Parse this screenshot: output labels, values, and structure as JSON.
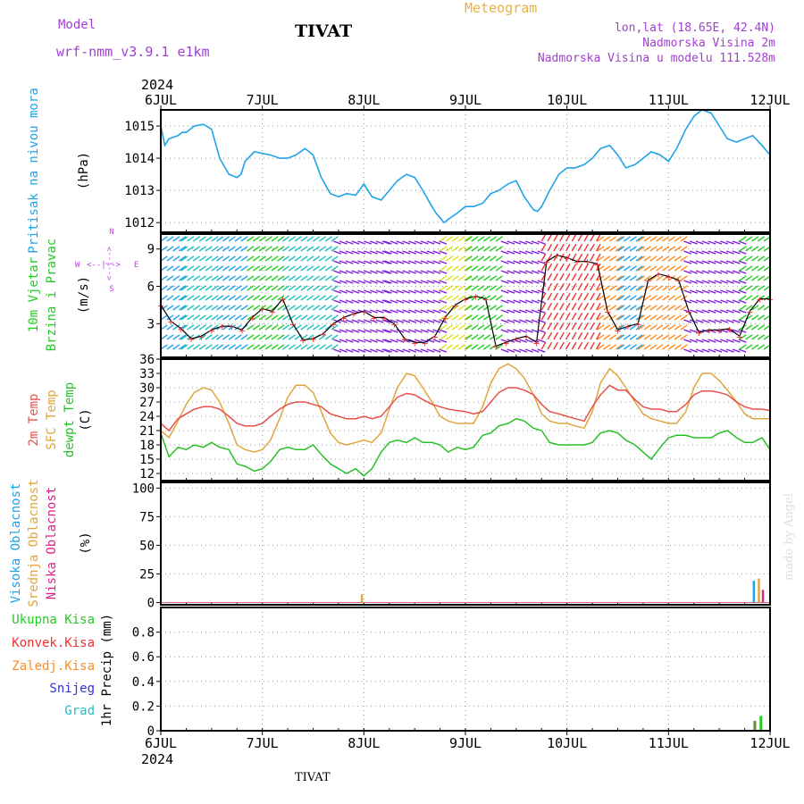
{
  "header": {
    "model_label": "Model",
    "model_name": "wrf-nmm_v3.9.1 e1km",
    "station": "TIVAT",
    "title": "Meteogram",
    "lonlat": "lon,lat (18.65E, 42.4N)",
    "altitude": "Nadmorska Visina 2m",
    "model_altitude": "Nadmorska Visina u modelu 111.528m",
    "signature": "made by Angel",
    "footer_station": "TIVAT"
  },
  "colors": {
    "pressure": "#1fa3e8",
    "temp2m": "#e8504a",
    "sfc_temp": "#e0a53c",
    "dewpoint": "#28c028",
    "wind_label": "#22cc22",
    "compass": "#c040e0",
    "high_cloud": "#1fa3e8",
    "mid_cloud": "#e0a53c",
    "low_cloud": "#e0208a",
    "total_precip": "#22cc22",
    "conv_precip": "#ee3030",
    "frozen_precip": "#ff8c20",
    "snow": "#3030e8",
    "graupel": "#20c0c0",
    "header_purple": "#a040d0",
    "header_orange": "#e8b040"
  },
  "chart_data": [
    {
      "type": "line",
      "title": "",
      "ylabel": "(hPa)",
      "side_labels": [
        "Pritisak na nivou mora"
      ],
      "x_year": "2024",
      "x_ticks": [
        "6JUL",
        "7JUL",
        "8JUL",
        "9JUL",
        "10JUL",
        "11JUL",
        "12JUL"
      ],
      "xlim_days": [
        6,
        12
      ],
      "ylim": [
        1011.7,
        1015.5
      ],
      "y_ticks": [
        1012,
        1013,
        1014,
        1015
      ],
      "grid": true,
      "series": [
        {
          "name": "Pritisak na nivou mora",
          "x": [
            6.0,
            6.04,
            6.08,
            6.17,
            6.21,
            6.25,
            6.33,
            6.42,
            6.5,
            6.58,
            6.67,
            6.75,
            6.79,
            6.83,
            6.92,
            7.0,
            7.08,
            7.17,
            7.25,
            7.33,
            7.42,
            7.5,
            7.58,
            7.67,
            7.75,
            7.83,
            7.92,
            8.0,
            8.08,
            8.17,
            8.25,
            8.33,
            8.42,
            8.5,
            8.58,
            8.67,
            8.71,
            8.75,
            8.79,
            8.83,
            8.92,
            9.0,
            9.08,
            9.17,
            9.25,
            9.33,
            9.42,
            9.5,
            9.58,
            9.67,
            9.71,
            9.75,
            9.83,
            9.92,
            10.0,
            10.08,
            10.17,
            10.25,
            10.33,
            10.42,
            10.5,
            10.58,
            10.67,
            10.75,
            10.83,
            10.92,
            11.0,
            11.08,
            11.17,
            11.25,
            11.33,
            11.42,
            11.5,
            11.58,
            11.67,
            11.75,
            11.83,
            11.92,
            12.0
          ],
          "y": [
            1015.0,
            1014.4,
            1014.6,
            1014.7,
            1014.8,
            1014.8,
            1015.0,
            1015.05,
            1014.9,
            1014.0,
            1013.5,
            1013.4,
            1013.5,
            1013.9,
            1014.2,
            1014.15,
            1014.1,
            1014.0,
            1014.0,
            1014.1,
            1014.3,
            1014.1,
            1013.4,
            1012.9,
            1012.8,
            1012.9,
            1012.85,
            1013.2,
            1012.8,
            1012.7,
            1013.0,
            1013.3,
            1013.5,
            1013.4,
            1013.0,
            1012.5,
            1012.3,
            1012.15,
            1012.0,
            1012.1,
            1012.3,
            1012.5,
            1012.5,
            1012.6,
            1012.9,
            1013.0,
            1013.2,
            1013.3,
            1012.8,
            1012.4,
            1012.35,
            1012.5,
            1013.0,
            1013.5,
            1013.7,
            1013.7,
            1013.8,
            1014.0,
            1014.3,
            1014.4,
            1014.1,
            1013.7,
            1013.8,
            1014.0,
            1014.2,
            1014.1,
            1013.9,
            1014.3,
            1014.9,
            1015.3,
            1015.5,
            1015.4,
            1015.0,
            1014.6,
            1014.5,
            1014.6,
            1014.7,
            1014.4,
            1014.1
          ]
        }
      ]
    },
    {
      "type": "line",
      "title": "",
      "ylabel": "(m/s)",
      "side_labels": [
        "10m Vjetar",
        "Brzina i Pravac"
      ],
      "compass": {
        "w": "W",
        "e": "E",
        "s": "S",
        "n": "N",
        "arrows": "<--|-->"
      },
      "xlim_days": [
        6,
        12
      ],
      "ylim": [
        0.3,
        10.2
      ],
      "y_ticks": [
        3,
        6,
        9
      ],
      "grid": true,
      "series": [
        {
          "name": "Brzina",
          "x": [
            6.0,
            6.1,
            6.2,
            6.3,
            6.4,
            6.5,
            6.6,
            6.7,
            6.8,
            6.9,
            7.0,
            7.1,
            7.2,
            7.3,
            7.4,
            7.5,
            7.6,
            7.7,
            7.8,
            7.9,
            8.0,
            8.1,
            8.2,
            8.3,
            8.4,
            8.5,
            8.6,
            8.7,
            8.8,
            8.9,
            9.0,
            9.1,
            9.2,
            9.3,
            9.4,
            9.5,
            9.6,
            9.7,
            9.8,
            9.9,
            10.0,
            10.1,
            10.2,
            10.3,
            10.4,
            10.5,
            10.6,
            10.7,
            10.8,
            10.9,
            11.0,
            11.1,
            11.2,
            11.3,
            11.4,
            11.5,
            11.6,
            11.7,
            11.8,
            11.9,
            12.0
          ],
          "y": [
            4.5,
            3.2,
            2.6,
            1.8,
            2.0,
            2.5,
            2.8,
            2.8,
            2.5,
            3.5,
            4.2,
            4.0,
            5.0,
            3.0,
            1.7,
            1.8,
            2.2,
            3.0,
            3.5,
            3.8,
            4.0,
            3.5,
            3.5,
            3.0,
            1.8,
            1.5,
            1.5,
            2.0,
            3.5,
            4.5,
            5.0,
            5.2,
            5.0,
            1.2,
            1.5,
            1.8,
            2.0,
            1.5,
            8.0,
            8.5,
            8.3,
            8.0,
            8.0,
            7.8,
            4.0,
            2.5,
            2.8,
            3.0,
            6.5,
            7.0,
            6.8,
            6.5,
            4.0,
            2.3,
            2.5,
            2.5,
            2.6,
            2.0,
            4.0,
            5.0,
            5.0
          ]
        }
      ],
      "wind_band_colors": [
        "#1fa3e8",
        "#22cc22",
        "#20c0c0",
        "#8020e0",
        "#e0e020",
        "#ee3030",
        "#ff8c20"
      ]
    },
    {
      "type": "line",
      "title": "",
      "ylabel": "(C)",
      "side_labels": [
        "2m Temp",
        "SFC Temp",
        "dewpt Temp"
      ],
      "xlim_days": [
        6,
        12
      ],
      "ylim": [
        10.5,
        36
      ],
      "y_ticks": [
        12,
        15,
        18,
        21,
        24,
        27,
        30,
        33,
        36
      ],
      "grid": true,
      "series": [
        {
          "name": "2m Temp",
          "x": [
            6.0,
            6.08,
            6.17,
            6.25,
            6.33,
            6.42,
            6.5,
            6.58,
            6.67,
            6.75,
            6.83,
            6.92,
            7.0,
            7.08,
            7.17,
            7.25,
            7.33,
            7.42,
            7.5,
            7.58,
            7.67,
            7.75,
            7.83,
            7.92,
            8.0,
            8.08,
            8.17,
            8.25,
            8.33,
            8.42,
            8.5,
            8.58,
            8.67,
            8.75,
            8.83,
            8.92,
            9.0,
            9.08,
            9.17,
            9.25,
            9.33,
            9.42,
            9.5,
            9.58,
            9.67,
            9.75,
            9.83,
            9.92,
            10.0,
            10.08,
            10.17,
            10.25,
            10.33,
            10.42,
            10.5,
            10.58,
            10.67,
            10.75,
            10.83,
            10.92,
            11.0,
            11.08,
            11.17,
            11.25,
            11.33,
            11.42,
            11.5,
            11.58,
            11.67,
            11.75,
            11.83,
            11.92,
            12.0
          ],
          "y": [
            22.5,
            21.0,
            23.5,
            24.5,
            25.5,
            26.0,
            26.0,
            25.5,
            24.0,
            22.5,
            22.0,
            22.0,
            22.5,
            24.0,
            25.5,
            26.5,
            27.0,
            27.0,
            26.5,
            26.0,
            24.5,
            24.0,
            23.5,
            23.5,
            24.0,
            23.5,
            24.0,
            26.0,
            28.0,
            28.8,
            28.5,
            27.5,
            26.5,
            26.0,
            25.5,
            25.2,
            25.0,
            24.5,
            25.0,
            27.0,
            29.0,
            30.0,
            30.0,
            29.5,
            28.5,
            26.5,
            25.0,
            24.5,
            24.0,
            23.5,
            23.0,
            26.0,
            28.5,
            30.5,
            29.5,
            29.5,
            27.5,
            26.0,
            25.5,
            25.5,
            25.0,
            25.0,
            26.5,
            28.5,
            29.3,
            29.3,
            29.0,
            28.5,
            27.0,
            26.0,
            25.5,
            25.5,
            25.2
          ]
        },
        {
          "name": "SFC Temp",
          "x": [
            6.0,
            6.08,
            6.17,
            6.25,
            6.33,
            6.42,
            6.5,
            6.58,
            6.67,
            6.75,
            6.83,
            6.92,
            7.0,
            7.08,
            7.17,
            7.25,
            7.33,
            7.42,
            7.5,
            7.58,
            7.67,
            7.75,
            7.83,
            7.92,
            8.0,
            8.08,
            8.17,
            8.25,
            8.33,
            8.42,
            8.5,
            8.58,
            8.67,
            8.75,
            8.83,
            8.92,
            9.0,
            9.08,
            9.17,
            9.25,
            9.33,
            9.42,
            9.5,
            9.58,
            9.67,
            9.75,
            9.83,
            9.92,
            10.0,
            10.08,
            10.17,
            10.25,
            10.33,
            10.42,
            10.5,
            10.58,
            10.67,
            10.75,
            10.83,
            10.92,
            11.0,
            11.08,
            11.17,
            11.25,
            11.33,
            11.42,
            11.5,
            11.58,
            11.67,
            11.75,
            11.83,
            11.92,
            12.0
          ],
          "y": [
            21.0,
            19.5,
            23.0,
            26.5,
            29.0,
            30.0,
            29.5,
            27.0,
            22.5,
            18.0,
            17.0,
            16.5,
            17.0,
            19.0,
            23.5,
            28.0,
            30.5,
            30.5,
            29.0,
            25.0,
            20.5,
            18.5,
            18.0,
            18.5,
            19.0,
            18.5,
            20.5,
            25.5,
            30.0,
            33.0,
            32.5,
            30.0,
            27.0,
            24.0,
            23.0,
            22.5,
            22.5,
            22.5,
            26.0,
            31.0,
            34.0,
            35.0,
            34.0,
            32.0,
            28.5,
            24.5,
            23.0,
            22.5,
            22.5,
            22.0,
            21.5,
            25.0,
            31.0,
            34.0,
            32.5,
            30.0,
            27.0,
            24.5,
            23.5,
            23.0,
            22.5,
            22.5,
            25.0,
            30.0,
            33.0,
            33.0,
            31.5,
            29.5,
            27.0,
            24.5,
            23.5,
            23.5,
            23.5
          ]
        },
        {
          "name": "dewpt Temp",
          "x": [
            6.0,
            6.08,
            6.17,
            6.25,
            6.33,
            6.42,
            6.5,
            6.58,
            6.67,
            6.75,
            6.83,
            6.92,
            7.0,
            7.08,
            7.17,
            7.25,
            7.33,
            7.42,
            7.5,
            7.58,
            7.67,
            7.75,
            7.83,
            7.92,
            8.0,
            8.08,
            8.17,
            8.25,
            8.33,
            8.42,
            8.5,
            8.58,
            8.67,
            8.75,
            8.83,
            8.92,
            9.0,
            9.08,
            9.17,
            9.25,
            9.33,
            9.42,
            9.5,
            9.58,
            9.67,
            9.75,
            9.83,
            9.92,
            10.0,
            10.08,
            10.17,
            10.25,
            10.33,
            10.42,
            10.5,
            10.58,
            10.67,
            10.75,
            10.83,
            10.92,
            11.0,
            11.08,
            11.17,
            11.25,
            11.33,
            11.42,
            11.5,
            11.58,
            11.67,
            11.75,
            11.83,
            11.92,
            12.0
          ],
          "y": [
            20.5,
            15.5,
            17.5,
            17.0,
            18.0,
            17.5,
            18.5,
            17.5,
            17.0,
            14.0,
            13.5,
            12.5,
            13.0,
            14.5,
            17.0,
            17.5,
            17.0,
            17.0,
            18.0,
            16.0,
            14.0,
            13.0,
            12.0,
            13.0,
            11.5,
            13.0,
            16.5,
            18.5,
            19.0,
            18.5,
            19.5,
            18.5,
            18.5,
            18.0,
            16.5,
            17.5,
            17.0,
            17.5,
            20.0,
            20.5,
            22.0,
            22.5,
            23.5,
            23.0,
            21.5,
            21.0,
            18.5,
            18.0,
            18.0,
            18.0,
            18.0,
            18.5,
            20.5,
            21.0,
            20.5,
            19.0,
            18.0,
            16.5,
            15.0,
            17.5,
            19.5,
            20.0,
            20.0,
            19.5,
            19.5,
            19.5,
            20.5,
            21.0,
            19.5,
            18.5,
            18.5,
            19.5,
            17.0
          ]
        }
      ]
    },
    {
      "type": "bar",
      "title": "",
      "ylabel": "(%)",
      "side_labels": [
        "Visoka Oblacnost",
        "Srednja Oblacnost",
        "Niska Oblacnost"
      ],
      "xlim_days": [
        6,
        12
      ],
      "ylim": [
        -2,
        105
      ],
      "y_ticks": [
        0,
        25,
        50,
        75,
        100
      ],
      "grid": true,
      "series": [
        {
          "name": "Visoka Oblacnost",
          "x": [
            11.84
          ],
          "values": [
            19
          ]
        },
        {
          "name": "Srednja Oblacnost",
          "x": [
            7.98,
            11.89
          ],
          "values": [
            7,
            21
          ]
        },
        {
          "name": "Niska Oblacnost",
          "x": [
            11.93
          ],
          "values": [
            11
          ]
        }
      ]
    },
    {
      "type": "bar",
      "title": "",
      "ylabel": "1hr Precip (mm)",
      "side_labels": [
        "Ukupna Kisa",
        "Konvek.Kisa",
        "Zaledj.Kisa",
        "Snijeg",
        "Grad"
      ],
      "xlim_days": [
        6,
        12
      ],
      "ylim": [
        0,
        1.0
      ],
      "y_ticks": [
        0,
        0.2,
        0.4,
        0.6,
        0.8
      ],
      "x_year": "2024",
      "x_ticks": [
        "6JUL",
        "7JUL",
        "8JUL",
        "9JUL",
        "10JUL",
        "11JUL",
        "12JUL"
      ],
      "grid": true,
      "series": [
        {
          "name": "Ukupna Kisa",
          "x": [
            11.85,
            11.91
          ],
          "values": [
            0.08,
            0.12
          ]
        }
      ]
    }
  ]
}
